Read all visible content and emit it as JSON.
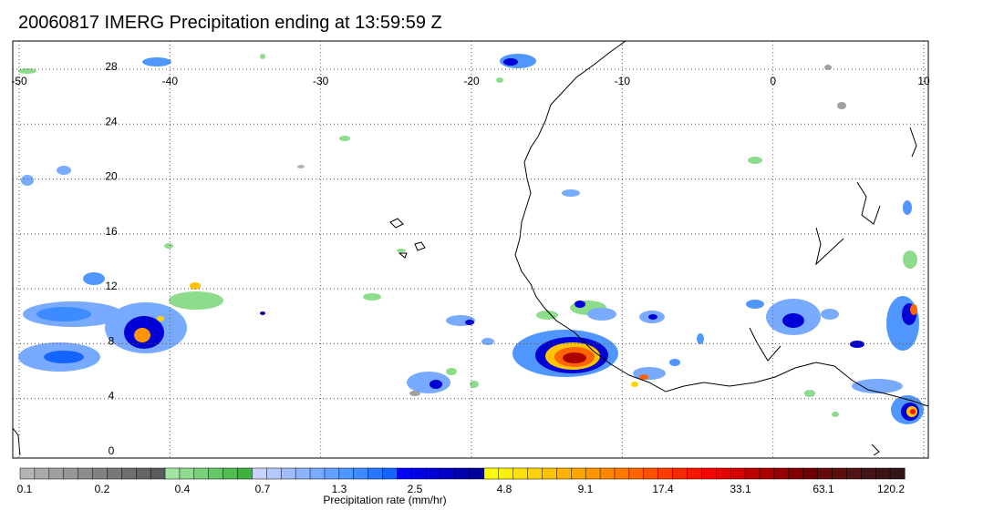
{
  "title": "20060817 IMERG Precipitation ending at 13:59:59 Z",
  "map": {
    "lon_range": [
      -50,
      10
    ],
    "lat_range": [
      -1,
      31
    ],
    "lon_ticks": [
      "-50",
      "-40",
      "-30",
      "-20",
      "-10",
      "0",
      "10"
    ],
    "lat_ticks": [
      "28",
      "24",
      "20",
      "16",
      "12",
      "8",
      "4",
      "0"
    ],
    "grid": true
  },
  "colorbar": {
    "label": "Precipitation rate (mm/hr)",
    "tick_labels": [
      "0.1",
      "0.2",
      "0.4",
      "0.7",
      "1.3",
      "2.5",
      "4.8",
      "9.1",
      "17.4",
      "33.1",
      "63.1",
      "120.2"
    ],
    "colors": [
      "#b4b4b4",
      "#aaaaaa",
      "#a0a0a0",
      "#969696",
      "#8c8c8c",
      "#828282",
      "#787878",
      "#6e6e6e",
      "#646464",
      "#5a5a5a",
      "#a0e6a0",
      "#8cdc8c",
      "#78d278",
      "#64c864",
      "#50be50",
      "#3cb43c",
      "#c8d2ff",
      "#b4c8ff",
      "#a0beff",
      "#8cb4ff",
      "#78aaff",
      "#64a0ff",
      "#5096ff",
      "#3c8cff",
      "#2878ff",
      "#1464ff",
      "#0000ff",
      "#0000eb",
      "#0000d7",
      "#0000c3",
      "#0000af",
      "#00009b",
      "#ffff00",
      "#fff000",
      "#ffe100",
      "#ffd200",
      "#ffc300",
      "#ffb400",
      "#ffa500",
      "#ff9600",
      "#ff8700",
      "#ff7800",
      "#ff6400",
      "#ff5000",
      "#ff3c00",
      "#ff2800",
      "#ff1400",
      "#ff0000",
      "#e60000",
      "#d20000",
      "#be0000",
      "#aa0000",
      "#960000",
      "#820000",
      "#6e0000",
      "#640a0a",
      "#5a0f0f",
      "#501414",
      "#461414",
      "#3c1414",
      "#321414"
    ]
  }
}
